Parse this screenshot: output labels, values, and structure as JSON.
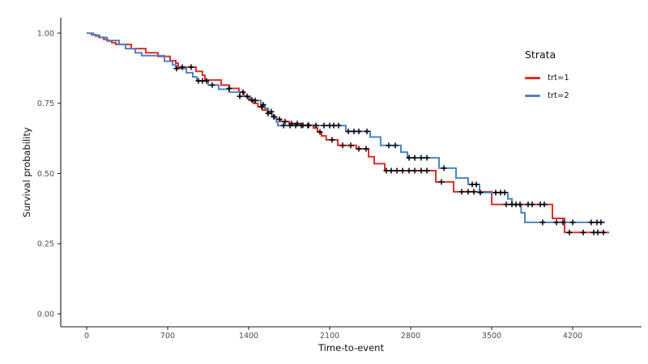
{
  "chart_data": {
    "type": "line",
    "subtype": "kaplan-meier-step",
    "title": "",
    "xlabel": "Time-to-event",
    "ylabel": "Survival probability",
    "xlim": [
      -224,
      4780
    ],
    "ylim": [
      -0.05,
      1.05
    ],
    "grid": false,
    "x_ticks": [
      0,
      700,
      1400,
      2100,
      2800,
      3500,
      4200
    ],
    "y_ticks": [
      {
        "value": 0.0,
        "label": "0.00"
      },
      {
        "value": 0.25,
        "label": "0.25"
      },
      {
        "value": 0.5,
        "label": "0.50"
      },
      {
        "value": 0.75,
        "label": "0.75"
      },
      {
        "value": 1.0,
        "label": "1.00"
      }
    ],
    "legend": {
      "title": "Strata",
      "position": "right",
      "entries": [
        {
          "label": "trt=1",
          "color": "#E02C2A"
        },
        {
          "label": "trt=2",
          "color": "#4C86C0"
        }
      ]
    },
    "censor_marker": {
      "shape": "plus",
      "color": "#000000",
      "size": 7
    },
    "series": [
      {
        "name": "trt=1",
        "color": "#E02C2A",
        "points": [
          [
            0,
            1.0
          ],
          [
            42,
            0.995
          ],
          [
            77,
            0.99
          ],
          [
            112,
            0.985
          ],
          [
            147,
            0.978
          ],
          [
            182,
            0.972
          ],
          [
            217,
            0.966
          ],
          [
            252,
            0.96
          ],
          [
            385,
            0.945
          ],
          [
            511,
            0.93
          ],
          [
            616,
            0.917
          ],
          [
            721,
            0.902
          ],
          [
            770,
            0.893
          ],
          [
            791,
            0.879
          ],
          [
            945,
            0.864
          ],
          [
            1000,
            0.85
          ],
          [
            1022,
            0.833
          ],
          [
            1162,
            0.815
          ],
          [
            1232,
            0.803
          ],
          [
            1316,
            0.79
          ],
          [
            1360,
            0.775
          ],
          [
            1400,
            0.762
          ],
          [
            1440,
            0.75
          ],
          [
            1480,
            0.738
          ],
          [
            1520,
            0.726
          ],
          [
            1560,
            0.714
          ],
          [
            1600,
            0.702
          ],
          [
            1640,
            0.693
          ],
          [
            1680,
            0.685
          ],
          [
            1750,
            0.678
          ],
          [
            1850,
            0.672
          ],
          [
            1960,
            0.662
          ],
          [
            1995,
            0.648
          ],
          [
            2030,
            0.634
          ],
          [
            2070,
            0.62
          ],
          [
            2170,
            0.6
          ],
          [
            2330,
            0.588
          ],
          [
            2436,
            0.56
          ],
          [
            2485,
            0.535
          ],
          [
            2576,
            0.51
          ],
          [
            3017,
            0.47
          ],
          [
            3171,
            0.435
          ],
          [
            3500,
            0.39
          ],
          [
            4025,
            0.34
          ],
          [
            4130,
            0.29
          ],
          [
            4515,
            0.29
          ]
        ],
        "censor_times": [
          826,
          903,
          1232,
          1351,
          1428,
          1512,
          1568,
          1617,
          1666,
          1715,
          1771,
          1820,
          1869,
          1918,
          2016,
          2121,
          2212,
          2282,
          2352,
          2415,
          2590,
          2632,
          2681,
          2730,
          2786,
          2835,
          2891,
          2940,
          3066,
          3241,
          3297,
          3346,
          3626,
          3675,
          3710,
          3745,
          3815,
          3850,
          3920,
          3955,
          4172,
          4291,
          4382,
          4417,
          4466
        ]
      },
      {
        "name": "trt=2",
        "color": "#4C86C0",
        "points": [
          [
            0,
            1.0
          ],
          [
            56,
            0.993
          ],
          [
            105,
            0.985
          ],
          [
            175,
            0.974
          ],
          [
            280,
            0.96
          ],
          [
            336,
            0.945
          ],
          [
            420,
            0.93
          ],
          [
            476,
            0.92
          ],
          [
            672,
            0.9
          ],
          [
            742,
            0.887
          ],
          [
            770,
            0.874
          ],
          [
            861,
            0.859
          ],
          [
            917,
            0.844
          ],
          [
            952,
            0.83
          ],
          [
            1050,
            0.815
          ],
          [
            1141,
            0.8
          ],
          [
            1232,
            0.79
          ],
          [
            1323,
            0.775
          ],
          [
            1414,
            0.76
          ],
          [
            1505,
            0.745
          ],
          [
            1540,
            0.732
          ],
          [
            1570,
            0.72
          ],
          [
            1600,
            0.708
          ],
          [
            1625,
            0.696
          ],
          [
            1640,
            0.684
          ],
          [
            1652,
            0.671
          ],
          [
            2240,
            0.65
          ],
          [
            2450,
            0.63
          ],
          [
            2540,
            0.6
          ],
          [
            2716,
            0.576
          ],
          [
            2772,
            0.556
          ],
          [
            3045,
            0.519
          ],
          [
            3192,
            0.484
          ],
          [
            3297,
            0.461
          ],
          [
            3395,
            0.432
          ],
          [
            3640,
            0.41
          ],
          [
            3675,
            0.389
          ],
          [
            3755,
            0.36
          ],
          [
            3787,
            0.326
          ],
          [
            4480,
            0.326
          ]
        ],
        "censor_times": [
          777,
          966,
          1001,
          1036,
          1085,
          1323,
          1386,
          1456,
          1526,
          1596,
          1701,
          1757,
          1806,
          1855,
          1911,
          1981,
          2051,
          2100,
          2135,
          2177,
          2261,
          2310,
          2352,
          2422,
          2611,
          2667,
          2786,
          2835,
          2891,
          2940,
          3087,
          3332,
          3367,
          3402,
          3535,
          3577,
          3612,
          3941,
          4060,
          4116,
          4200,
          4361,
          4410,
          4445
        ]
      }
    ]
  },
  "style": {
    "axis_color": "#1a1a1a",
    "tick_label_color": "#4d4d4d",
    "background": "#ffffff"
  }
}
